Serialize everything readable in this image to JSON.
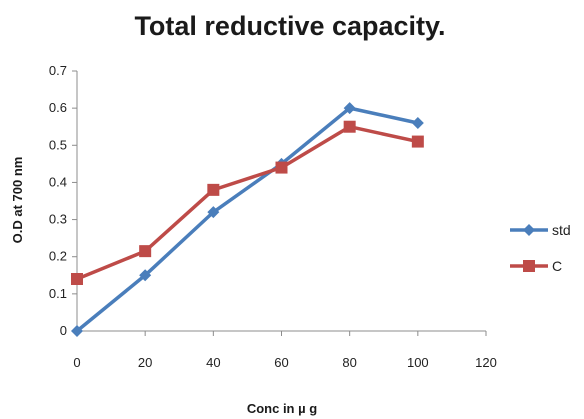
{
  "chart_data": {
    "type": "line",
    "title": "Total reductive capacity.",
    "xlabel": "Conc  in µ g",
    "ylabel": "O.D at 700 nm",
    "x": [
      0,
      20,
      40,
      60,
      80,
      100
    ],
    "xlim": [
      0,
      120
    ],
    "ylim": [
      0,
      0.7
    ],
    "xticks": [
      "0",
      "20",
      "40",
      "60",
      "80",
      "100",
      "120"
    ],
    "yticks": [
      "0",
      "0.1",
      "0.2",
      "0.3",
      "0.4",
      "0.5",
      "0.6",
      "0.7"
    ],
    "grid": false,
    "legend_position": "right",
    "series": [
      {
        "name": "std",
        "values": [
          0.0,
          0.15,
          0.32,
          0.45,
          0.6,
          0.56
        ],
        "color": "#4a7ebb",
        "marker": "diamond"
      },
      {
        "name": "C",
        "values": [
          0.14,
          0.215,
          0.38,
          0.44,
          0.55,
          0.51
        ],
        "color": "#be4b48",
        "marker": "square"
      }
    ]
  }
}
